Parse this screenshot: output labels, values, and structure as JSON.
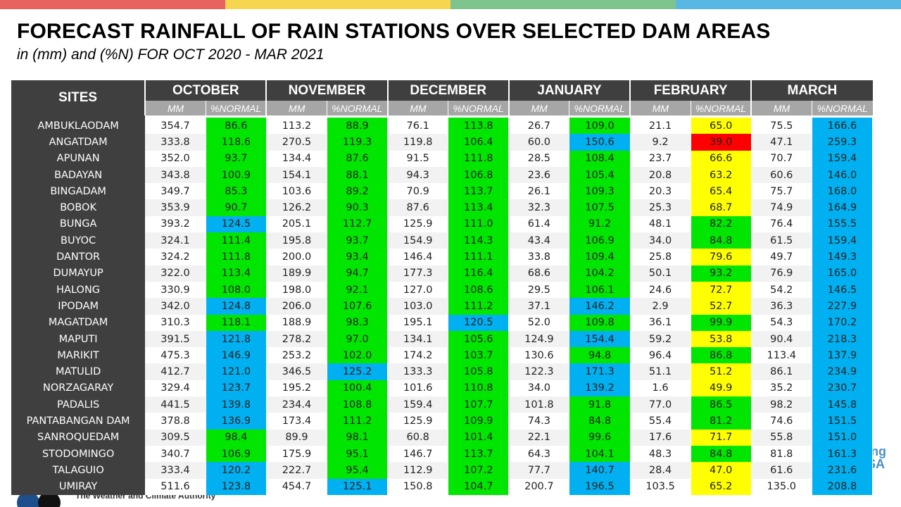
{
  "title": "FORECAST RAINFALL OF RAIN STATIONS OVER SELECTED DAM AREAS",
  "subtitle": "in (mm) and (%N) FOR OCT 2020 - MAR 2021",
  "top_bar_colors": [
    "#e8625f",
    "#f5d64e",
    "#7cc48c",
    "#58b7e3"
  ],
  "legend_colors": {
    "g": "#00e600",
    "b": "#00b0f0",
    "y": "#ffff00",
    "r": "#ff0000"
  },
  "footer_text": "The Weather and Climate Authority",
  "side_text": "ing\nSA",
  "table": {
    "sites_header": "SITES",
    "months": [
      "OCTOBER",
      "NOVEMBER",
      "DECEMBER",
      "JANUARY",
      "FEBRUARY",
      "MARCH"
    ],
    "sub_mm": "MM",
    "sub_pct": "%NORMAL",
    "rows": [
      {
        "site": "AMBUKLAODAM",
        "vals": [
          [
            "354.7",
            "86.6",
            "g"
          ],
          [
            "113.2",
            "88.9",
            "g"
          ],
          [
            "76.1",
            "113.8",
            "g"
          ],
          [
            "26.7",
            "109.0",
            "g"
          ],
          [
            "21.1",
            "65.0",
            "y"
          ],
          [
            "75.5",
            "166.6",
            "b"
          ]
        ]
      },
      {
        "site": "ANGATDAM",
        "vals": [
          [
            "333.8",
            "118.6",
            "g"
          ],
          [
            "270.5",
            "119.3",
            "g"
          ],
          [
            "119.8",
            "106.4",
            "g"
          ],
          [
            "60.0",
            "150.6",
            "b"
          ],
          [
            "9.2",
            "39.0",
            "r"
          ],
          [
            "47.1",
            "259.3",
            "b"
          ]
        ]
      },
      {
        "site": "APUNAN",
        "vals": [
          [
            "352.0",
            "93.7",
            "g"
          ],
          [
            "134.4",
            "87.6",
            "g"
          ],
          [
            "91.5",
            "111.8",
            "g"
          ],
          [
            "28.5",
            "108.4",
            "g"
          ],
          [
            "23.7",
            "66.6",
            "y"
          ],
          [
            "70.7",
            "159.4",
            "b"
          ]
        ]
      },
      {
        "site": "BADAYAN",
        "vals": [
          [
            "343.8",
            "100.9",
            "g"
          ],
          [
            "154.1",
            "88.1",
            "g"
          ],
          [
            "94.3",
            "106.8",
            "g"
          ],
          [
            "23.6",
            "105.4",
            "g"
          ],
          [
            "20.8",
            "63.2",
            "y"
          ],
          [
            "60.6",
            "146.0",
            "b"
          ]
        ]
      },
      {
        "site": "BINGADAM",
        "vals": [
          [
            "349.7",
            "85.3",
            "g"
          ],
          [
            "103.6",
            "89.2",
            "g"
          ],
          [
            "70.9",
            "113.7",
            "g"
          ],
          [
            "26.1",
            "109.3",
            "g"
          ],
          [
            "20.3",
            "65.4",
            "y"
          ],
          [
            "75.7",
            "168.0",
            "b"
          ]
        ]
      },
      {
        "site": "BOBOK",
        "vals": [
          [
            "353.9",
            "90.7",
            "g"
          ],
          [
            "126.2",
            "90.3",
            "g"
          ],
          [
            "87.6",
            "113.4",
            "g"
          ],
          [
            "32.3",
            "107.5",
            "g"
          ],
          [
            "25.3",
            "68.7",
            "y"
          ],
          [
            "74.9",
            "164.9",
            "b"
          ]
        ]
      },
      {
        "site": "BUNGA",
        "vals": [
          [
            "393.2",
            "124.5",
            "b"
          ],
          [
            "205.1",
            "112.7",
            "g"
          ],
          [
            "125.9",
            "111.0",
            "g"
          ],
          [
            "61.4",
            "91.2",
            "g"
          ],
          [
            "48.1",
            "82.2",
            "g"
          ],
          [
            "76.4",
            "155.5",
            "b"
          ]
        ]
      },
      {
        "site": "BUYOC",
        "vals": [
          [
            "324.1",
            "111.4",
            "g"
          ],
          [
            "195.8",
            "93.7",
            "g"
          ],
          [
            "154.9",
            "114.3",
            "g"
          ],
          [
            "43.4",
            "106.9",
            "g"
          ],
          [
            "34.0",
            "84.8",
            "g"
          ],
          [
            "61.5",
            "159.4",
            "b"
          ]
        ]
      },
      {
        "site": "DANTOR",
        "vals": [
          [
            "324.2",
            "111.8",
            "g"
          ],
          [
            "200.0",
            "93.4",
            "g"
          ],
          [
            "146.4",
            "111.1",
            "g"
          ],
          [
            "33.8",
            "109.4",
            "g"
          ],
          [
            "25.8",
            "79.6",
            "y"
          ],
          [
            "49.7",
            "149.3",
            "b"
          ]
        ]
      },
      {
        "site": "DUMAYUP",
        "vals": [
          [
            "322.0",
            "113.4",
            "g"
          ],
          [
            "189.9",
            "94.7",
            "g"
          ],
          [
            "177.3",
            "116.4",
            "g"
          ],
          [
            "68.6",
            "104.2",
            "g"
          ],
          [
            "50.1",
            "93.2",
            "g"
          ],
          [
            "76.9",
            "165.0",
            "b"
          ]
        ]
      },
      {
        "site": "HALONG",
        "vals": [
          [
            "330.9",
            "108.0",
            "g"
          ],
          [
            "198.0",
            "92.1",
            "g"
          ],
          [
            "127.0",
            "108.6",
            "g"
          ],
          [
            "29.5",
            "106.1",
            "g"
          ],
          [
            "24.6",
            "72.7",
            "y"
          ],
          [
            "54.2",
            "146.5",
            "b"
          ]
        ]
      },
      {
        "site": "IPODAM",
        "vals": [
          [
            "342.0",
            "124.8",
            "b"
          ],
          [
            "206.0",
            "107.6",
            "g"
          ],
          [
            "103.0",
            "111.2",
            "g"
          ],
          [
            "37.1",
            "146.2",
            "b"
          ],
          [
            "2.9",
            "52.7",
            "y"
          ],
          [
            "36.3",
            "227.9",
            "b"
          ]
        ]
      },
      {
        "site": "MAGATDAM",
        "vals": [
          [
            "310.3",
            "118.1",
            "g"
          ],
          [
            "188.9",
            "98.3",
            "g"
          ],
          [
            "195.1",
            "120.5",
            "b"
          ],
          [
            "52.0",
            "109.8",
            "g"
          ],
          [
            "36.1",
            "99.9",
            "g"
          ],
          [
            "54.3",
            "170.2",
            "b"
          ]
        ]
      },
      {
        "site": "MAPUTI",
        "vals": [
          [
            "391.5",
            "121.8",
            "b"
          ],
          [
            "278.2",
            "97.0",
            "g"
          ],
          [
            "134.1",
            "105.6",
            "g"
          ],
          [
            "124.9",
            "154.4",
            "b"
          ],
          [
            "59.2",
            "53.8",
            "y"
          ],
          [
            "90.4",
            "218.3",
            "b"
          ]
        ]
      },
      {
        "site": "MARIKIT",
        "vals": [
          [
            "475.3",
            "146.9",
            "b"
          ],
          [
            "253.2",
            "102.0",
            "g"
          ],
          [
            "174.2",
            "103.7",
            "g"
          ],
          [
            "130.6",
            "94.8",
            "g"
          ],
          [
            "96.4",
            "86.8",
            "g"
          ],
          [
            "113.4",
            "137.9",
            "b"
          ]
        ]
      },
      {
        "site": "MATULID",
        "vals": [
          [
            "412.7",
            "121.0",
            "b"
          ],
          [
            "346.5",
            "125.2",
            "b"
          ],
          [
            "133.3",
            "105.8",
            "g"
          ],
          [
            "122.3",
            "171.3",
            "b"
          ],
          [
            "51.1",
            "51.2",
            "y"
          ],
          [
            "86.1",
            "234.9",
            "b"
          ]
        ]
      },
      {
        "site": "NORZAGARAY",
        "vals": [
          [
            "329.4",
            "123.7",
            "b"
          ],
          [
            "195.2",
            "100.4",
            "g"
          ],
          [
            "101.6",
            "110.8",
            "g"
          ],
          [
            "34.0",
            "139.2",
            "b"
          ],
          [
            "1.6",
            "49.9",
            "y"
          ],
          [
            "35.2",
            "230.7",
            "b"
          ]
        ]
      },
      {
        "site": "PADALIS",
        "vals": [
          [
            "441.5",
            "139.8",
            "b"
          ],
          [
            "234.4",
            "108.8",
            "g"
          ],
          [
            "159.4",
            "107.7",
            "g"
          ],
          [
            "101.8",
            "91.8",
            "g"
          ],
          [
            "77.0",
            "86.5",
            "g"
          ],
          [
            "98.2",
            "145.8",
            "b"
          ]
        ]
      },
      {
        "site": "PANTABANGAN DAM",
        "vals": [
          [
            "378.8",
            "136.9",
            "b"
          ],
          [
            "173.4",
            "111.2",
            "g"
          ],
          [
            "125.9",
            "109.9",
            "g"
          ],
          [
            "74.3",
            "84.8",
            "g"
          ],
          [
            "55.4",
            "81.2",
            "g"
          ],
          [
            "74.6",
            "151.5",
            "b"
          ]
        ]
      },
      {
        "site": "SANROQUEDAM",
        "vals": [
          [
            "309.5",
            "98.4",
            "g"
          ],
          [
            "89.9",
            "98.1",
            "g"
          ],
          [
            "60.8",
            "101.4",
            "g"
          ],
          [
            "22.1",
            "99.6",
            "g"
          ],
          [
            "17.6",
            "71.7",
            "y"
          ],
          [
            "55.8",
            "151.0",
            "b"
          ]
        ]
      },
      {
        "site": "STODOMINGO",
        "vals": [
          [
            "340.7",
            "106.9",
            "g"
          ],
          [
            "175.9",
            "95.1",
            "g"
          ],
          [
            "146.7",
            "113.7",
            "g"
          ],
          [
            "64.3",
            "104.1",
            "g"
          ],
          [
            "48.3",
            "84.8",
            "g"
          ],
          [
            "81.8",
            "161.3",
            "b"
          ]
        ]
      },
      {
        "site": "TALAGUIO",
        "vals": [
          [
            "333.4",
            "120.2",
            "b"
          ],
          [
            "222.7",
            "95.4",
            "g"
          ],
          [
            "112.9",
            "107.2",
            "g"
          ],
          [
            "77.7",
            "140.7",
            "b"
          ],
          [
            "28.4",
            "47.0",
            "y"
          ],
          [
            "61.6",
            "231.6",
            "b"
          ]
        ]
      },
      {
        "site": "UMIRAY",
        "vals": [
          [
            "511.6",
            "123.8",
            "b"
          ],
          [
            "454.7",
            "125.1",
            "b"
          ],
          [
            "150.8",
            "104.7",
            "g"
          ],
          [
            "200.7",
            "196.5",
            "b"
          ],
          [
            "103.5",
            "65.2",
            "y"
          ],
          [
            "135.0",
            "208.8",
            "b"
          ]
        ]
      }
    ]
  }
}
